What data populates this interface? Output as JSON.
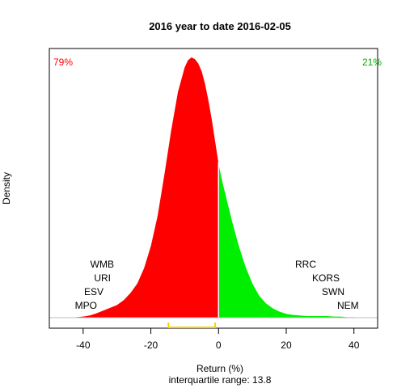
{
  "chart_data": {
    "type": "area",
    "title": "2016  year to date 2016-02-05",
    "xlabel": "Return (%)",
    "ylabel": "Density",
    "subtitle": "interquartile range: 13.8",
    "xlim": [
      -50,
      47
    ],
    "x_ticks": [
      "-40",
      "-20",
      "0",
      "20",
      "40"
    ],
    "x_tick_values": [
      -40,
      -20,
      0,
      20,
      40
    ],
    "pct_negative": "79%",
    "pct_positive": "21%",
    "colors": {
      "negative": "#ff0000",
      "positive": "#00ee00",
      "iqr": "#ffcc00",
      "baseline": "#bebebe",
      "divider": "#ffffff"
    },
    "density": {
      "x": [
        -44,
        -42,
        -40,
        -38,
        -36,
        -34,
        -32,
        -30,
        -28,
        -26,
        -24,
        -22,
        -20,
        -18,
        -16,
        -14,
        -12,
        -10,
        -9,
        -8,
        -7,
        -6,
        -5,
        -4,
        -3,
        -2,
        -1,
        0,
        1,
        2,
        4,
        6,
        8,
        10,
        12,
        14,
        16,
        18,
        20,
        22,
        24,
        26,
        28,
        30,
        32,
        34,
        36,
        38,
        40,
        42
      ],
      "y": [
        0.0,
        0.001,
        0.002,
        0.004,
        0.008,
        0.013,
        0.018,
        0.023,
        0.032,
        0.045,
        0.062,
        0.09,
        0.13,
        0.185,
        0.26,
        0.34,
        0.41,
        0.455,
        0.468,
        0.473,
        0.47,
        0.462,
        0.448,
        0.425,
        0.395,
        0.36,
        0.32,
        0.28,
        0.25,
        0.225,
        0.175,
        0.13,
        0.092,
        0.062,
        0.04,
        0.026,
        0.017,
        0.011,
        0.007,
        0.005,
        0.004,
        0.003,
        0.003,
        0.003,
        0.003,
        0.002,
        0.002,
        0.001,
        0.001,
        0.0
      ]
    },
    "iqr": [
      -14.8,
      -1.0
    ],
    "left_labels": [
      "WMB",
      "URI",
      "ESV",
      "MPO"
    ],
    "right_labels": [
      "RRC",
      "KORS",
      "SWN",
      "NEM"
    ]
  }
}
